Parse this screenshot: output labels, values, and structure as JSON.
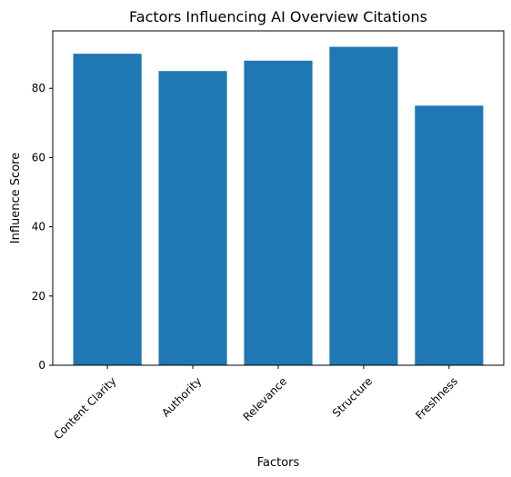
{
  "chart_data": {
    "type": "bar",
    "title": "Factors Influencing AI Overview Citations",
    "xlabel": "Factors",
    "ylabel": "Influence Score",
    "categories": [
      "Content Clarity",
      "Authority",
      "Relevance",
      "Structure",
      "Freshness"
    ],
    "values": [
      90,
      85,
      88,
      92,
      75
    ],
    "ylim": [
      0,
      96.6
    ],
    "yticks": [
      0,
      20,
      40,
      60,
      80
    ],
    "grid": false,
    "legend": "none",
    "bar_color": "#1f77b4",
    "x_tick_rotation_deg": 45
  }
}
